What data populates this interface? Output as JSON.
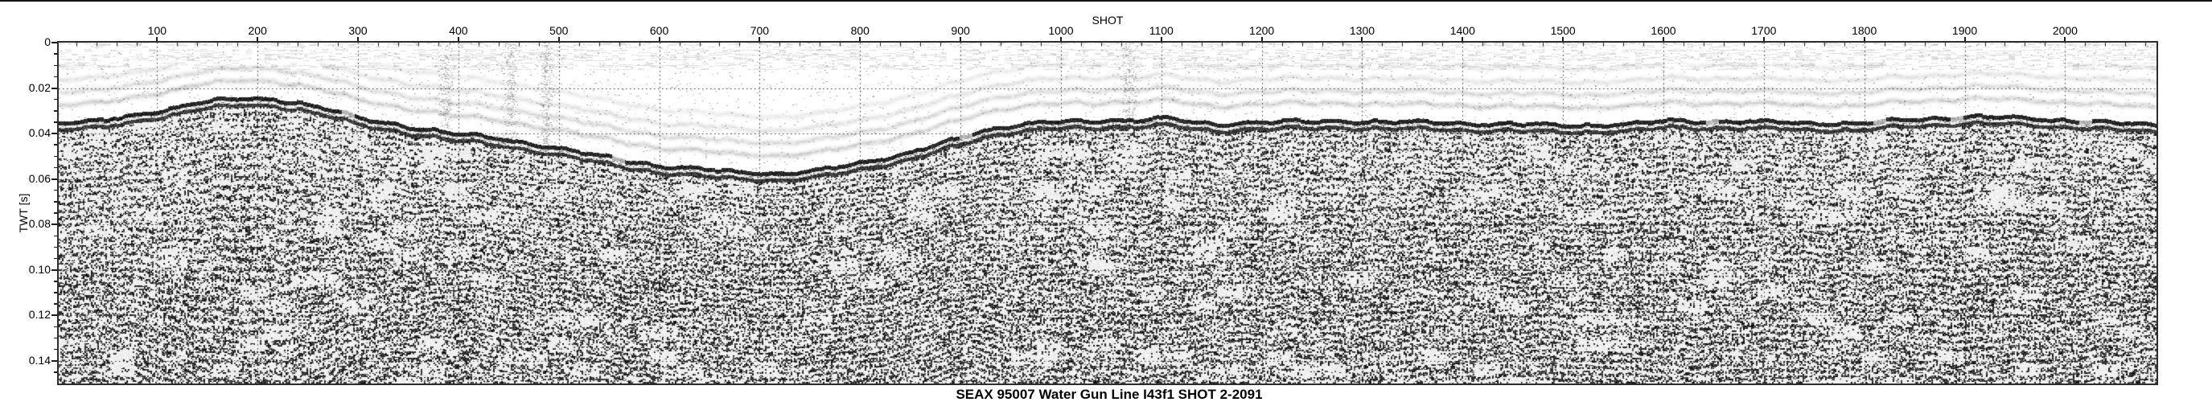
{
  "chart_data": {
    "type": "heatmap",
    "variant": "grayscale seismic reflection section (raster of wiggle traces)",
    "title": "SEAX 95007 Water Gun Line I43f1 SHOT 2-2091",
    "xlabel": "SHOT",
    "ylabel": "TWT [s]",
    "x_range": [
      2,
      2091
    ],
    "y_range": [
      0,
      0.15
    ],
    "x_major_ticks": [
      100,
      200,
      300,
      400,
      500,
      600,
      700,
      800,
      900,
      1000,
      1100,
      1200,
      1300,
      1400,
      1500,
      1600,
      1700,
      1800,
      1900,
      2000
    ],
    "x_minor_tick_step": 20,
    "y_major_ticks": [
      0,
      0.02,
      0.04,
      0.06,
      0.08,
      0.1,
      0.12,
      0.14
    ],
    "y_major_tick_labels": [
      "0",
      "0.02",
      "0.04",
      "0.06",
      "0.08",
      "0.10",
      "0.12",
      "0.14"
    ],
    "y_minor_tick_step": 0.005,
    "grid": {
      "style": "dotted",
      "x_step": 100,
      "y_step": 0.02,
      "color": "#3a3a3a"
    },
    "legend": "none",
    "colors": {
      "background": "#ffffff",
      "ink": "#000000",
      "axis_border": "#2d2d2d",
      "top_rule": "#141414"
    },
    "seafloor_horizon_shot_twt": [
      [
        2,
        0.0345
      ],
      [
        40,
        0.034
      ],
      [
        70,
        0.0325
      ],
      [
        100,
        0.03
      ],
      [
        120,
        0.028
      ],
      [
        140,
        0.0258
      ],
      [
        160,
        0.0248
      ],
      [
        185,
        0.0244
      ],
      [
        215,
        0.0247
      ],
      [
        240,
        0.0258
      ],
      [
        270,
        0.0285
      ],
      [
        300,
        0.033
      ],
      [
        330,
        0.0352
      ],
      [
        360,
        0.037
      ],
      [
        400,
        0.0398
      ],
      [
        440,
        0.042
      ],
      [
        480,
        0.0445
      ],
      [
        520,
        0.0478
      ],
      [
        560,
        0.051
      ],
      [
        600,
        0.0538
      ],
      [
        640,
        0.0553
      ],
      [
        680,
        0.0568
      ],
      [
        720,
        0.057
      ],
      [
        760,
        0.0558
      ],
      [
        800,
        0.0525
      ],
      [
        840,
        0.0488
      ],
      [
        870,
        0.0455
      ],
      [
        900,
        0.0415
      ],
      [
        925,
        0.0382
      ],
      [
        950,
        0.036
      ],
      [
        975,
        0.035
      ],
      [
        1000,
        0.0347
      ],
      [
        1040,
        0.034
      ],
      [
        1080,
        0.0333
      ],
      [
        1105,
        0.033
      ],
      [
        1130,
        0.0345
      ],
      [
        1155,
        0.0357
      ],
      [
        1180,
        0.035
      ],
      [
        1210,
        0.0343
      ],
      [
        1250,
        0.0344
      ],
      [
        1300,
        0.0342
      ],
      [
        1350,
        0.0347
      ],
      [
        1400,
        0.035
      ],
      [
        1450,
        0.0355
      ],
      [
        1500,
        0.036
      ],
      [
        1545,
        0.0357
      ],
      [
        1580,
        0.035
      ],
      [
        1605,
        0.034
      ],
      [
        1650,
        0.0342
      ],
      [
        1700,
        0.0346
      ],
      [
        1750,
        0.035
      ],
      [
        1790,
        0.0352
      ],
      [
        1830,
        0.034
      ],
      [
        1870,
        0.0328
      ],
      [
        1910,
        0.0322
      ],
      [
        1950,
        0.0328
      ],
      [
        2000,
        0.0338
      ],
      [
        2045,
        0.0348
      ],
      [
        2091,
        0.0362
      ]
    ],
    "water_multiple_offsets_s": [
      0.0075,
      0.013,
      0.0185,
      0.0245
    ],
    "noise_burst_shots": [
      388,
      452,
      488,
      1068
    ],
    "texture_params": {
      "layer_period_s": 0.0028,
      "mound_dome_warp": 2.6,
      "seed": 7
    }
  }
}
